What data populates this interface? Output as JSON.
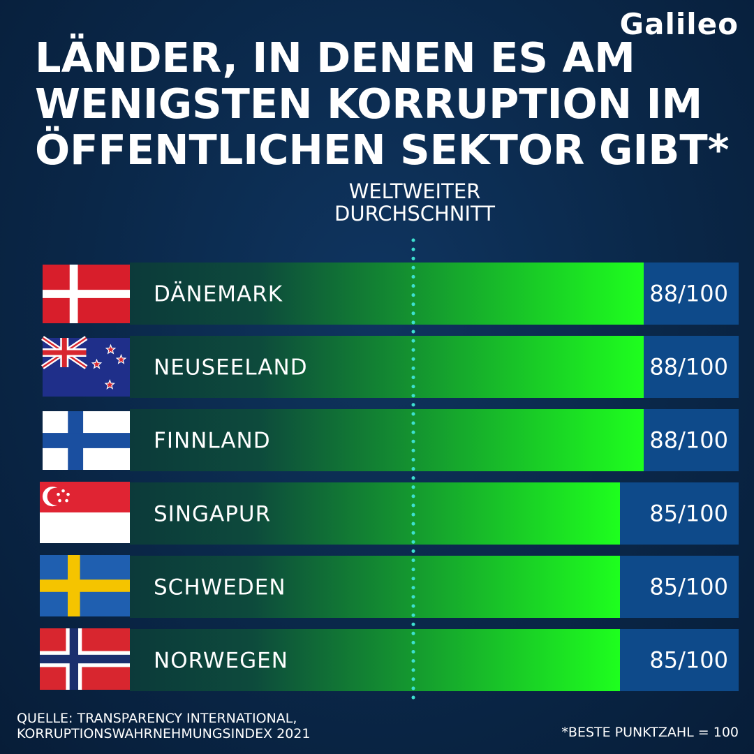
{
  "brand": "Galileo",
  "chart_data": {
    "type": "bar",
    "orientation": "horizontal",
    "title_lines": [
      "LÄNDER, IN DENEN ES AM",
      "WENIGSTEN KORRUPTION IM",
      "ÖFFENTLICHEN SEKTOR GIBT*"
    ],
    "reference_label_lines": [
      "WELTWEITER",
      "DURCHSCHNITT"
    ],
    "categories": [
      "DÄNEMARK",
      "NEUSEELAND",
      "FINNLAND",
      "SINGAPUR",
      "SCHWEDEN",
      "NORWEGEN"
    ],
    "values": [
      88,
      88,
      88,
      85,
      85,
      85
    ],
    "value_labels": [
      "88/100",
      "88/100",
      "88/100",
      "85/100",
      "85/100",
      "85/100"
    ],
    "flags": [
      "flag-denmark",
      "flag-new-zealand",
      "flag-finland",
      "flag-singapore",
      "flag-sweden",
      "flag-norway"
    ],
    "max": 100,
    "source_lines": [
      "QUELLE: TRANSPARENCY INTERNATIONAL,",
      "KORRUPTIONSWAHRNEHMUNGSINDEX 2021"
    ],
    "footnote": "*BESTE PUNKTZAHL = 100",
    "colors": {
      "bar_start": "#0c3a3a",
      "bar_end": "#1eff1e",
      "value_box": "#0e4a8a",
      "reference_line": "#3ee0d0"
    }
  }
}
